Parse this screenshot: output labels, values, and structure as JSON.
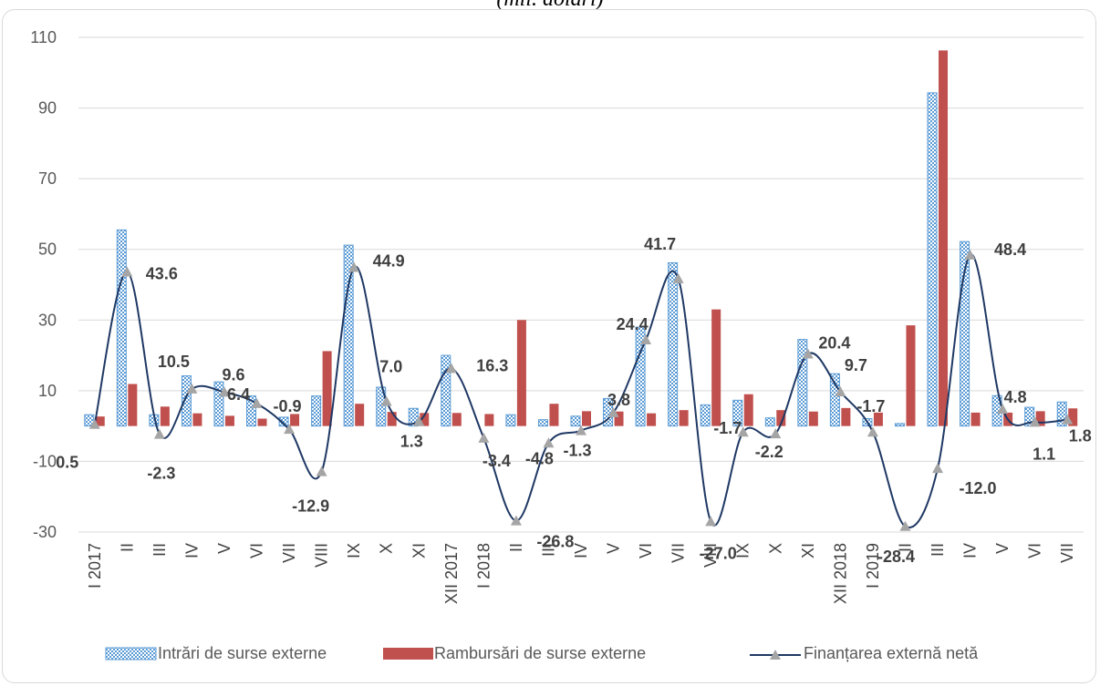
{
  "chart_data": {
    "type": "bar",
    "title": "(mil. dolari)",
    "categories": [
      "I 2017",
      "II",
      "III",
      "IV",
      "V",
      "VI",
      "VII",
      "VIII",
      "IX",
      "X",
      "XI",
      "XII 2017",
      "I 2018",
      "II",
      "III",
      "IV",
      "V",
      "VI",
      "VII",
      "VIII",
      "IX",
      "X",
      "XI",
      "XII 2018",
      "I 2019",
      "II",
      "III",
      "IV",
      "V",
      "VI",
      "VII"
    ],
    "ylim": [
      -30,
      110
    ],
    "yticks": [
      -30,
      -10,
      10,
      30,
      50,
      70,
      90,
      110
    ],
    "grid": true,
    "legend_position": "bottom",
    "series": [
      {
        "name": "Intrări de surse externe",
        "type": "bar",
        "color": "#5b9bd5",
        "values": [
          3.2,
          55.5,
          3.2,
          14.2,
          12.5,
          8.5,
          2.5,
          8.5,
          51.2,
          11.0,
          5.0,
          20.0,
          0.0,
          3.2,
          1.8,
          2.8,
          7.8,
          28.0,
          46.2,
          6.0,
          7.3,
          2.3,
          24.5,
          14.8,
          2.1,
          0.7,
          94.3,
          52.2,
          8.6,
          5.3,
          6.8
        ]
      },
      {
        "name": "Rambursări de surse externe",
        "type": "bar",
        "color": "#c0504d",
        "values": [
          2.7,
          11.9,
          5.5,
          3.6,
          2.9,
          2.1,
          3.4,
          21.2,
          6.3,
          4.0,
          3.7,
          3.7,
          3.4,
          30.0,
          6.3,
          4.2,
          4.1,
          3.6,
          4.5,
          33.0,
          9.0,
          4.5,
          4.1,
          5.1,
          3.8,
          28.5,
          106.3,
          3.8,
          3.8,
          4.2,
          5.0
        ]
      },
      {
        "name": "Finanțarea externă netă",
        "type": "line",
        "color": "#1f3864",
        "values": [
          0.5,
          43.6,
          -2.3,
          10.5,
          9.6,
          6.4,
          -0.9,
          -12.9,
          44.9,
          7.0,
          1.3,
          16.3,
          -3.4,
          -26.8,
          -4.8,
          -1.3,
          3.8,
          24.4,
          41.7,
          -27.0,
          -1.7,
          -2.2,
          20.4,
          9.7,
          -1.7,
          -28.4,
          -12.0,
          48.4,
          4.8,
          1.1,
          1.8
        ],
        "labels": [
          "0.5",
          "43.6",
          "-2.3",
          "10.5",
          "9.6",
          "6.4",
          "-0.9",
          "-12.9",
          "44.9",
          "7.0",
          "1.3",
          "16.3",
          "-3.4",
          "-26.8",
          "-4.8",
          "-1.3",
          "3.8",
          "24.4",
          "41.7",
          "-27.0",
          "-1.7",
          "-2.2",
          "20.4",
          "9.7",
          "-1.7",
          "-28.4",
          "-12.0",
          "48.4",
          "4.8",
          "1.1",
          "1.8"
        ]
      }
    ]
  }
}
